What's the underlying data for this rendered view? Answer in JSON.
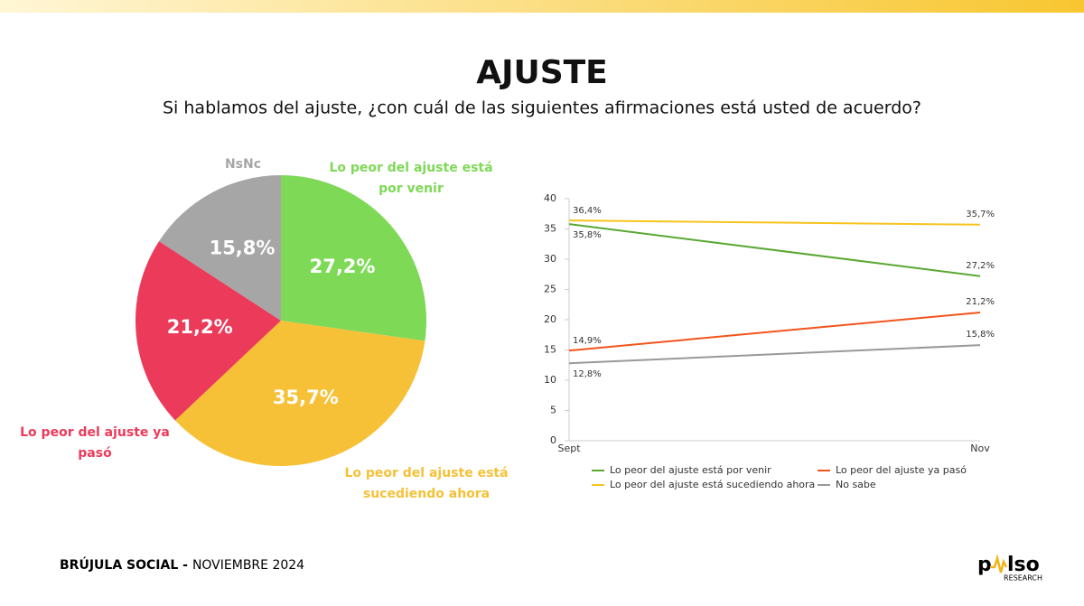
{
  "title": "AJUSTE",
  "subtitle": "Si hablamos del ajuste, ¿con cuál de las siguientes afirmaciones está usted de acuerdo?",
  "chart_data": [
    {
      "type": "pie",
      "categories": [
        "Lo peor del ajuste está por venir",
        "Lo peor del ajuste está sucediendo ahora",
        "Lo peor del ajuste ya pasó",
        "NsNc"
      ],
      "values": [
        27.2,
        35.7,
        21.2,
        15.8
      ],
      "value_labels": [
        "27,2%",
        "35,7%",
        "21,2%",
        "15,8%"
      ],
      "colors": [
        "#7ed957",
        "#f6c137",
        "#ec3a5a",
        "#a6a6a6"
      ]
    },
    {
      "type": "line",
      "categories": [
        "Sept",
        "Nov"
      ],
      "series": [
        {
          "name": "Lo peor del ajuste está por venir",
          "color": "#5aa832",
          "values": [
            35.8,
            27.2
          ],
          "value_labels": [
            "35,8%",
            "27,2%"
          ]
        },
        {
          "name": "Lo peor del ajuste ya pasó",
          "color": "#f2541b",
          "values": [
            14.9,
            21.2
          ],
          "value_labels": [
            "14,9%",
            "21,2%"
          ]
        },
        {
          "name": "Lo peor del ajuste está sucediendo ahora",
          "color": "#f7c31d",
          "values": [
            36.4,
            35.7
          ],
          "value_labels": [
            "36,4%",
            "35,7%"
          ]
        },
        {
          "name": "No sabe",
          "color": "#999999",
          "values": [
            12.8,
            15.8
          ],
          "value_labels": [
            "12,8%",
            "15,8%"
          ]
        }
      ],
      "ylim": [
        0,
        40
      ],
      "yticks": [
        0,
        5,
        10,
        15,
        20,
        25,
        30,
        35,
        40
      ]
    }
  ],
  "footer": {
    "bold": "BRÚJULA SOCIAL -",
    "date": "NOVIEMBRE 2024"
  },
  "logo": {
    "left": "p",
    "right": "lso",
    "tagline": "RESEARCH"
  }
}
